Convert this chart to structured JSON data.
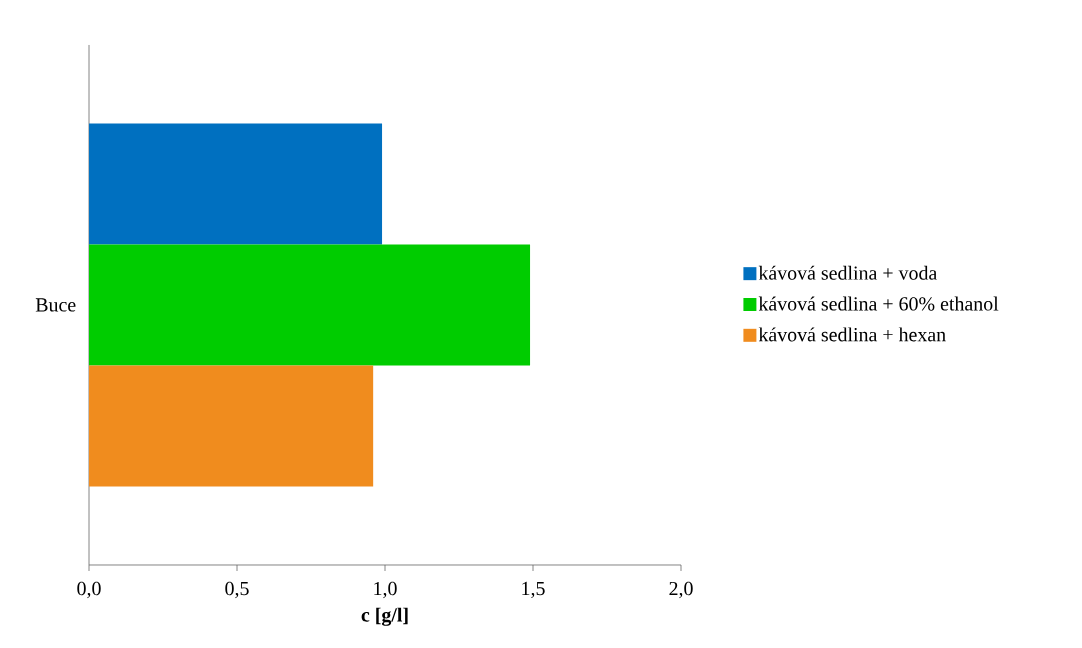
{
  "chart_data": {
    "type": "bar",
    "orientation": "horizontal",
    "xlabel": "c [g/l]",
    "categories": [
      "Buce"
    ],
    "series": [
      {
        "name": "kávová sedlina + voda",
        "color": "#0070c0",
        "values": [
          0.99
        ]
      },
      {
        "name": "kávová sedlina + 60% ethanol",
        "color": "#00cc00",
        "values": [
          1.49
        ]
      },
      {
        "name": "kávová sedlina + hexan",
        "color": "#f08c1e",
        "values": [
          0.96
        ]
      }
    ],
    "xlim": [
      0,
      2
    ],
    "xticks": [
      {
        "value": 0,
        "label": "0,0"
      },
      {
        "value": 0.5,
        "label": "0,5"
      },
      {
        "value": 1,
        "label": "1,0"
      },
      {
        "value": 1.5,
        "label": "1,5"
      },
      {
        "value": 2,
        "label": "2,0"
      }
    ],
    "legend": "right"
  }
}
